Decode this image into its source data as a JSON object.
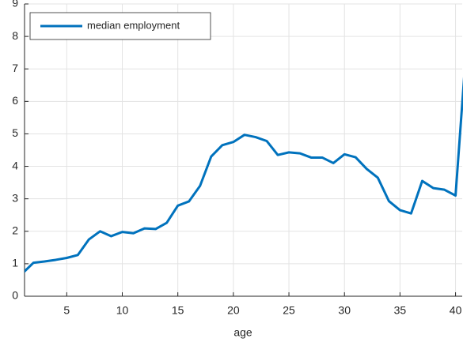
{
  "chart_data": {
    "type": "line",
    "x": [
      1,
      2,
      3,
      4,
      5,
      6,
      7,
      8,
      9,
      10,
      11,
      12,
      13,
      14,
      15,
      16,
      17,
      18,
      19,
      20,
      21,
      22,
      23,
      24,
      25,
      26,
      27,
      28,
      29,
      30,
      31,
      32,
      33,
      34,
      35,
      36,
      37,
      38,
      39,
      40,
      41
    ],
    "series": [
      {
        "name": "median employment",
        "color": "#0072bd",
        "values": [
          0.7,
          1.03,
          1.07,
          1.12,
          1.18,
          1.27,
          1.75,
          2.0,
          1.85,
          1.98,
          1.94,
          2.09,
          2.07,
          2.26,
          2.79,
          2.92,
          3.4,
          4.3,
          4.65,
          4.75,
          4.97,
          4.9,
          4.78,
          4.35,
          4.43,
          4.4,
          4.27,
          4.27,
          4.1,
          4.37,
          4.28,
          3.92,
          3.65,
          2.93,
          2.65,
          2.55,
          3.55,
          3.33,
          3.28,
          3.1,
          7.8
        ]
      }
    ],
    "xlabel": "age",
    "xlim": [
      1.2,
      40.6
    ],
    "xticks": [
      5,
      10,
      15,
      20,
      25,
      30,
      35,
      40
    ],
    "ylim": [
      0,
      9
    ],
    "yticks": [
      0,
      1,
      2,
      3,
      4,
      5,
      6,
      7,
      8,
      9
    ],
    "grid": true,
    "legend": "upper-left"
  }
}
